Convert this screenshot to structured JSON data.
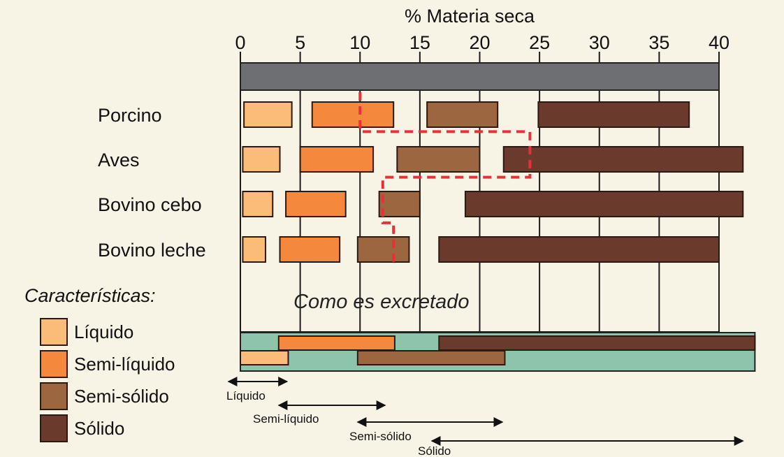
{
  "chart_data": {
    "type": "bar",
    "subtype": "floating-range",
    "title": "",
    "xlabel": "% Materia seca",
    "ylabel": "",
    "xlim": [
      0,
      40
    ],
    "xticks": [
      0,
      5,
      10,
      15,
      20,
      25,
      30,
      35,
      40
    ],
    "grid": true,
    "colors": {
      "Líquido": "#fbbc7a",
      "Semi-líquido": "#f4893e",
      "Semi-sólido": "#9b6640",
      "Sólido": "#6a3a2d",
      "reference_bar": "#6d6f72",
      "summary_background": "#8ec4ab",
      "dashed_line": "#e8303a"
    },
    "categories": [
      "Porcino",
      "Aves",
      "Bovino cebo",
      "Bovino leche"
    ],
    "series": [
      {
        "name": "Líquido",
        "ranges": [
          [
            0.3,
            4.3
          ],
          [
            0.2,
            3.3
          ],
          [
            0.2,
            2.7
          ],
          [
            0.2,
            2.1
          ]
        ]
      },
      {
        "name": "Semi-líquido",
        "ranges": [
          [
            6.0,
            12.8
          ],
          [
            5.0,
            11.1
          ],
          [
            3.8,
            8.8
          ],
          [
            3.3,
            8.3
          ]
        ]
      },
      {
        "name": "Semi-sólido",
        "ranges": [
          [
            15.6,
            21.5
          ],
          [
            13.1,
            20.0
          ],
          [
            11.6,
            15.0
          ],
          [
            9.8,
            14.1
          ]
        ]
      },
      {
        "name": "Sólido",
        "ranges": [
          [
            24.9,
            37.5
          ],
          [
            22.0,
            42.0
          ],
          [
            18.8,
            42.0
          ],
          [
            16.6,
            40.0
          ]
        ]
      }
    ],
    "reference_bar": [
      0,
      40
    ],
    "annotation": "Como es excretado",
    "dashed_path": [
      [
        10,
        -0.5
      ],
      [
        10,
        0.38
      ],
      [
        24.2,
        0.38
      ],
      [
        24.2,
        1.4
      ],
      [
        11.9,
        1.4
      ],
      [
        11.9,
        2.42
      ],
      [
        12.8,
        2.42
      ],
      [
        12.8,
        3.4
      ]
    ],
    "summary_ranges": [
      {
        "name": "Semi-líquido",
        "row": 0,
        "range": [
          3.2,
          12.9
        ]
      },
      {
        "name": "Sólido",
        "row": 0,
        "range": [
          16.6,
          43.0
        ]
      },
      {
        "name": "Líquido",
        "row": 1,
        "range": [
          0,
          4.0
        ]
      },
      {
        "name": "Semi-sólido",
        "row": 1,
        "range": [
          9.8,
          22.1
        ]
      }
    ],
    "range_arrows": [
      {
        "label": "Líquido",
        "range": [
          -1.0,
          3.9
        ]
      },
      {
        "label": "Semi-líquido",
        "range": [
          3.2,
          12.1
        ]
      },
      {
        "label": "Semi-sólido",
        "range": [
          9.8,
          21.9
        ]
      },
      {
        "label": "Sólido",
        "range": [
          16.0,
          42.0
        ]
      }
    ]
  },
  "legend": {
    "title": "Características:",
    "items": [
      {
        "label": "Líquido",
        "color": "#fbbc7a"
      },
      {
        "label": "Semi-líquido",
        "color": "#f4893e"
      },
      {
        "label": "Semi-sólido",
        "color": "#9b6640"
      },
      {
        "label": "Sólido",
        "color": "#6a3a2d"
      }
    ]
  }
}
